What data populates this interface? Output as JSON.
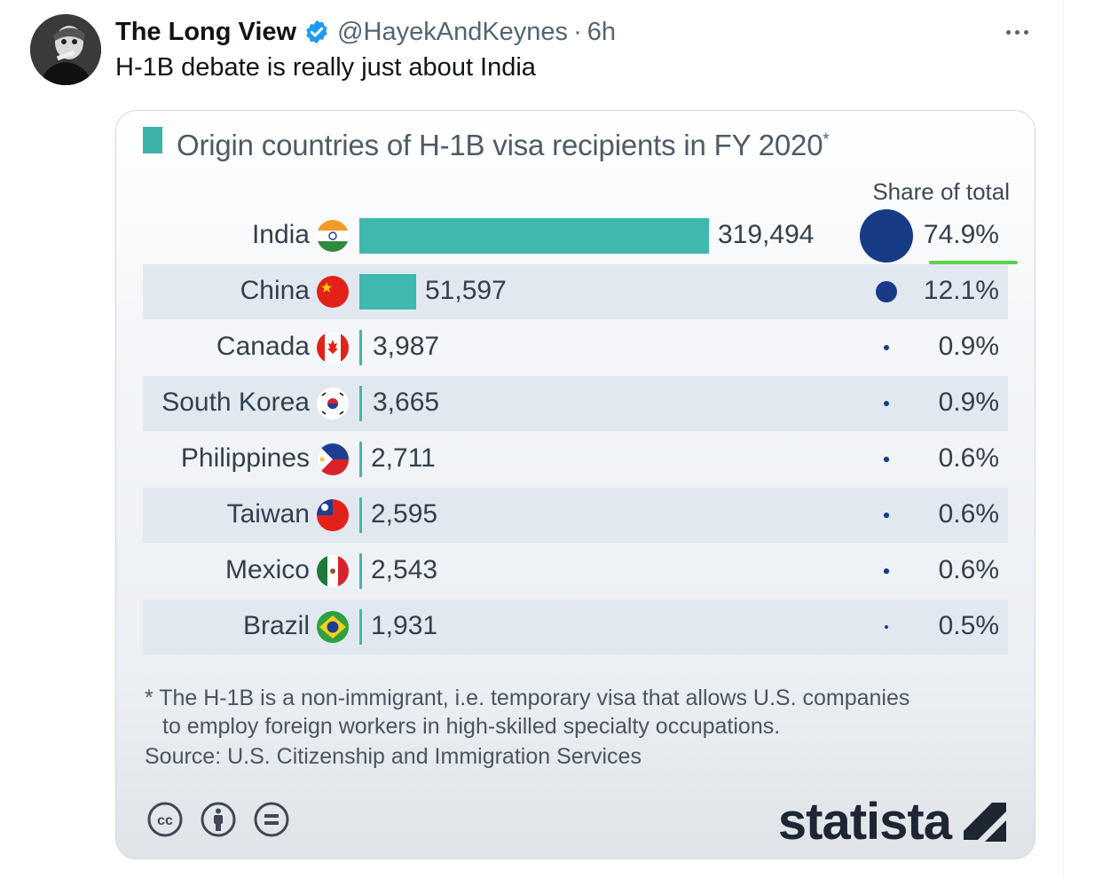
{
  "tweet": {
    "display_name": "The Long View",
    "handle": "@HayekAndKeynes",
    "separator": "·",
    "time": "6h",
    "text": "H-1B debate is really just about India"
  },
  "icons": {
    "verified": "verified-badge-icon",
    "more": "more-options-icon",
    "flags": [
      "india-flag-icon",
      "china-flag-icon",
      "canada-flag-icon",
      "south-korea-flag-icon",
      "philippines-flag-icon",
      "taiwan-flag-icon",
      "mexico-flag-icon",
      "brazil-flag-icon"
    ],
    "license": [
      "cc-icon",
      "attribution-icon",
      "no-derivatives-icon"
    ],
    "logo": "statista-logo-icon"
  },
  "colors": {
    "bar": "#3fb8ad",
    "dot": "#173b84",
    "band": "#e1e8f0",
    "verified": "#1d9bf0",
    "highlight_underline": "#58d34c"
  },
  "chart_data": {
    "type": "bar",
    "orientation": "horizontal",
    "title": "Origin countries of H-1B visa recipients in FY 2020",
    "title_mark": "*",
    "share_header": "Share of total",
    "categories": [
      "India",
      "China",
      "Canada",
      "South Korea",
      "Philippines",
      "Taiwan",
      "Mexico",
      "Brazil"
    ],
    "values": [
      319494,
      51597,
      3987,
      3665,
      2711,
      2595,
      2543,
      1931
    ],
    "value_labels": [
      "319,494",
      "51,597",
      "3,987",
      "3,665",
      "2,711",
      "2,595",
      "2,543",
      "1,931"
    ],
    "share_values": [
      74.9,
      12.1,
      0.9,
      0.9,
      0.6,
      0.6,
      0.6,
      0.5
    ],
    "share_labels": [
      "74.9%",
      "12.1%",
      "0.9%",
      "0.9%",
      "0.6%",
      "0.6%",
      "0.6%",
      "0.5%"
    ],
    "footnote_line1": "* The H-1B is a non-immigrant, i.e. temporary visa that allows U.S. companies",
    "footnote_line2": "to employ foreign workers in high-skilled specialty occupations.",
    "source": "Source: U.S. Citizenship and Immigration Services",
    "brand": "statista"
  }
}
